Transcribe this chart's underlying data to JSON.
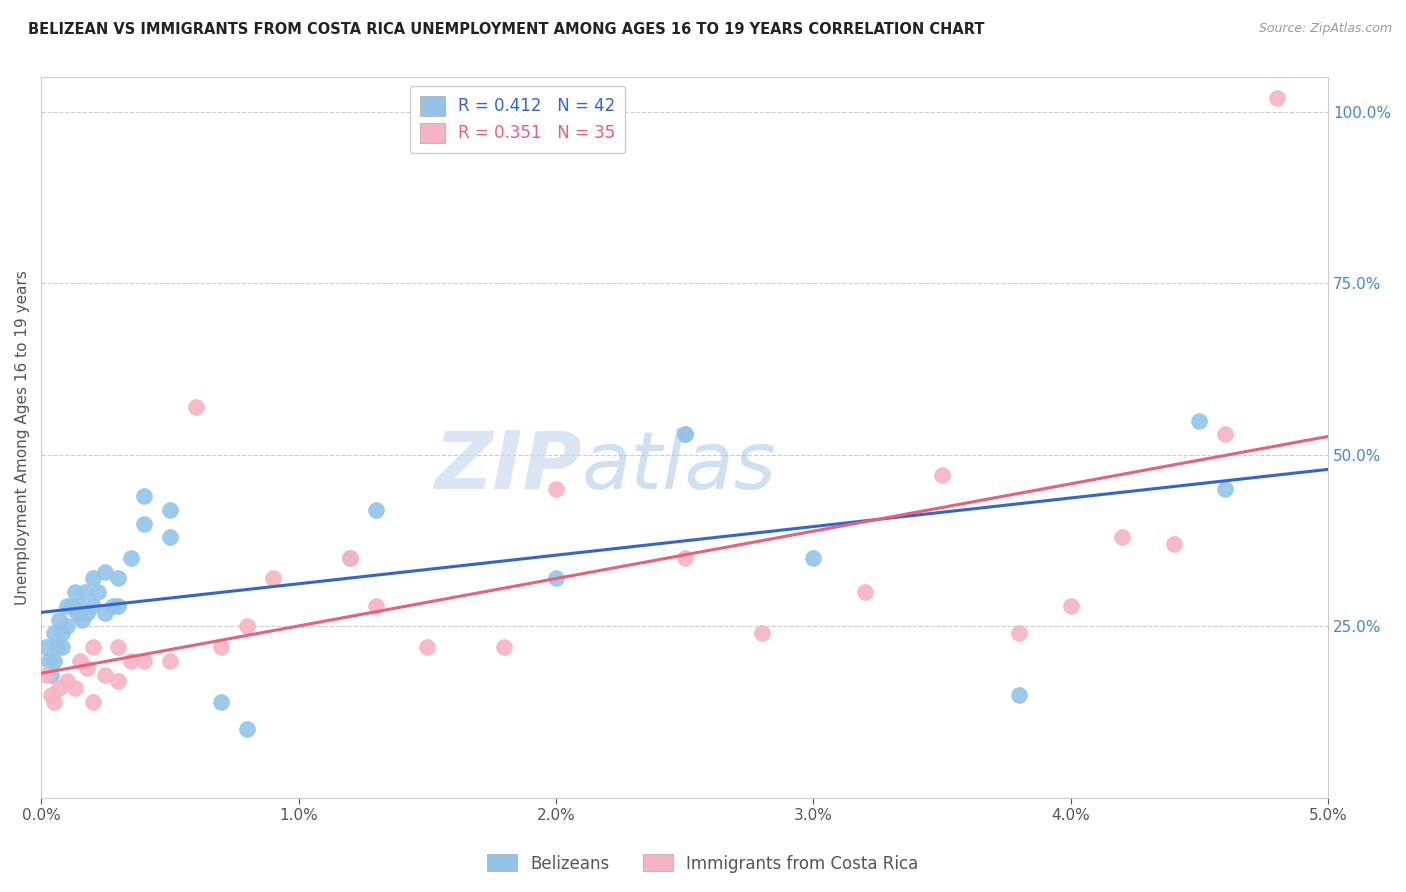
{
  "title": "BELIZEAN VS IMMIGRANTS FROM COSTA RICA UNEMPLOYMENT AMONG AGES 16 TO 19 YEARS CORRELATION CHART",
  "source": "Source: ZipAtlas.com",
  "ylabel": "Unemployment Among Ages 16 to 19 years",
  "xlim": [
    0.0,
    0.05
  ],
  "ylim": [
    0.0,
    1.05
  ],
  "xticks": [
    0.0,
    0.01,
    0.02,
    0.03,
    0.04,
    0.05
  ],
  "xtick_labels": [
    "0.0%",
    "1.0%",
    "2.0%",
    "3.0%",
    "4.0%",
    "5.0%"
  ],
  "yticks_right": [
    0.25,
    0.5,
    0.75,
    1.0
  ],
  "ytick_labels_right": [
    "25.0%",
    "50.0%",
    "75.0%",
    "100.0%"
  ],
  "blue_color": "#93c4e8",
  "pink_color": "#f7b3c2",
  "blue_line_color": "#3366cc",
  "pink_line_color": "#e8607a",
  "blue_R": 0.412,
  "blue_N": 42,
  "pink_R": 0.351,
  "pink_N": 35,
  "blue_points_x": [
    0.0002,
    0.0003,
    0.0004,
    0.0005,
    0.0005,
    0.0006,
    0.0007,
    0.0008,
    0.0008,
    0.001,
    0.001,
    0.0012,
    0.0013,
    0.0014,
    0.0015,
    0.0016,
    0.0017,
    0.0018,
    0.002,
    0.002,
    0.0022,
    0.0025,
    0.0025,
    0.0028,
    0.003,
    0.003,
    0.0035,
    0.004,
    0.004,
    0.005,
    0.005,
    0.007,
    0.008,
    0.012,
    0.013,
    0.02,
    0.025,
    0.025,
    0.03,
    0.038,
    0.045,
    0.046
  ],
  "blue_points_y": [
    0.22,
    0.2,
    0.18,
    0.24,
    0.2,
    0.22,
    0.26,
    0.24,
    0.22,
    0.28,
    0.25,
    0.28,
    0.3,
    0.27,
    0.28,
    0.26,
    0.3,
    0.27,
    0.32,
    0.28,
    0.3,
    0.33,
    0.27,
    0.28,
    0.32,
    0.28,
    0.35,
    0.44,
    0.4,
    0.42,
    0.38,
    0.14,
    0.1,
    0.35,
    0.42,
    0.32,
    0.53,
    0.53,
    0.35,
    0.15,
    0.55,
    0.45
  ],
  "pink_points_x": [
    0.0002,
    0.0004,
    0.0005,
    0.0007,
    0.001,
    0.0013,
    0.0015,
    0.0018,
    0.002,
    0.002,
    0.0025,
    0.003,
    0.003,
    0.0035,
    0.004,
    0.005,
    0.006,
    0.007,
    0.008,
    0.009,
    0.012,
    0.013,
    0.015,
    0.018,
    0.02,
    0.025,
    0.028,
    0.032,
    0.035,
    0.038,
    0.04,
    0.042,
    0.044,
    0.046,
    0.048
  ],
  "pink_points_y": [
    0.18,
    0.15,
    0.14,
    0.16,
    0.17,
    0.16,
    0.2,
    0.19,
    0.22,
    0.14,
    0.18,
    0.22,
    0.17,
    0.2,
    0.2,
    0.2,
    0.57,
    0.22,
    0.25,
    0.32,
    0.35,
    0.28,
    0.22,
    0.22,
    0.45,
    0.35,
    0.24,
    0.3,
    0.47,
    0.24,
    0.28,
    0.38,
    0.37,
    0.53,
    1.02
  ],
  "watermark_zip": "ZIP",
  "watermark_atlas": "atlas",
  "background_color": "#ffffff",
  "grid_color": "#cccccc"
}
